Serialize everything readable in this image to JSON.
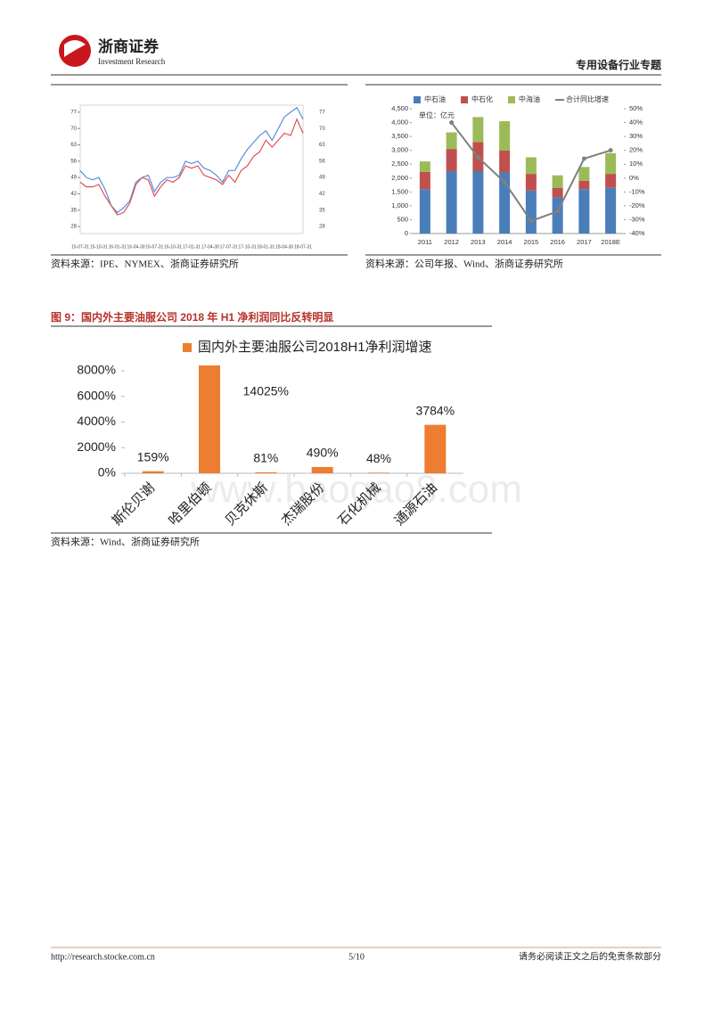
{
  "header": {
    "brand": "浙商证券",
    "brand_en": "Investment Research",
    "report": "专用设备行业专题"
  },
  "sources": [
    "资料来源：IPE、NYMEX、浙商证券研究所",
    "资料来源：公司年报、Wind、浙商证券研究所",
    "资料来源：Wind、浙商证券研究所"
  ],
  "figure_title": "图 9：国内外主要油服公司 2018 年 H1 净利润同比反转明显",
  "watermark": "www.baogao8.com",
  "footer": {
    "url": "http://research.stocke.com.cn",
    "page": "5/10",
    "note": "请务必阅读正文之后的免责条款部分"
  },
  "chart_data": [
    {
      "type": "line",
      "categories": [
        "15-07-31",
        null,
        null,
        "15-10-31",
        null,
        null,
        "16-01-31",
        null,
        null,
        "16-04-30",
        null,
        null,
        "16-07-31",
        null,
        null,
        "16-10-31",
        null,
        null,
        "17-01-31",
        null,
        null,
        "17-04-30",
        null,
        null,
        "17-07-31",
        null,
        null,
        "17-10-31",
        null,
        null,
        "18-01-31",
        null,
        null,
        "18-04-30",
        null,
        null,
        "18-07-31"
      ],
      "series": [
        {
          "color": "#5b8fd6",
          "values": [
            52,
            49,
            48,
            49,
            44,
            37,
            34,
            36,
            39,
            47,
            49,
            50,
            43,
            47,
            49,
            49,
            50,
            56,
            55,
            56,
            53,
            52,
            50,
            47,
            52,
            52,
            57,
            61,
            64,
            67,
            69,
            65,
            70,
            75,
            77,
            79,
            74
          ]
        },
        {
          "color": "#e0505a",
          "values": [
            47,
            45,
            45,
            46,
            41,
            37,
            33,
            34,
            38,
            46,
            49,
            48,
            41,
            45,
            48,
            47,
            49,
            54,
            53,
            54,
            50,
            49,
            48,
            46,
            50,
            47,
            52,
            54,
            58,
            60,
            65,
            62,
            65,
            68,
            67,
            74,
            68
          ]
        }
      ],
      "ylim": [
        25,
        80
      ],
      "yticks": [
        28,
        35,
        42,
        49,
        56,
        63,
        70,
        77
      ]
    },
    {
      "type": "bar",
      "stacked": true,
      "annotation": "单位：亿元",
      "categories": [
        "2011",
        "2012",
        "2013",
        "2014",
        "2015",
        "2016",
        "2017",
        "2018E"
      ],
      "series": [
        {
          "name": "中石油",
          "color": "#4a7ebb",
          "values": [
            1600,
            2250,
            2250,
            2200,
            1550,
            1300,
            1600,
            1650
          ]
        },
        {
          "name": "中石化",
          "color": "#c0504d",
          "values": [
            620,
            800,
            1050,
            800,
            600,
            350,
            300,
            500
          ]
        },
        {
          "name": "中海油",
          "color": "#9bbb59",
          "values": [
            380,
            600,
            900,
            1050,
            600,
            450,
            500,
            750
          ]
        },
        {
          "name": "合计同比增速",
          "color": "#808080",
          "axis": "y2",
          "values": [
            null,
            40,
            15,
            -3,
            -31,
            -24,
            14,
            20
          ]
        }
      ],
      "ylim": [
        0,
        4500
      ],
      "yticks": [
        0,
        500,
        {
          "value": 1000,
          "label": "1,000"
        },
        {
          "value": 1500,
          "label": "1,500"
        },
        {
          "value": 2000,
          "label": "2,000"
        },
        {
          "value": 2500,
          "label": "2,500"
        },
        {
          "value": 3000,
          "label": "3,000"
        },
        {
          "value": 3500,
          "label": "3,500"
        },
        {
          "value": 4000,
          "label": "4,000"
        },
        {
          "value": 4500,
          "label": "4,500"
        }
      ],
      "y2lim": [
        -40,
        50
      ],
      "y2ticks": [
        {
          "value": -40,
          "label": "-40%"
        },
        {
          "value": -30,
          "label": "-30%"
        },
        {
          "value": -20,
          "label": "-20%"
        },
        {
          "value": -10,
          "label": "-10%"
        },
        {
          "value": 0,
          "label": "0%"
        },
        {
          "value": 10,
          "label": "10%"
        },
        {
          "value": 20,
          "label": "20%"
        },
        {
          "value": 30,
          "label": "30%"
        },
        {
          "value": 40,
          "label": "40%"
        },
        {
          "value": 50,
          "label": "50%"
        }
      ]
    },
    {
      "type": "bar",
      "series": [
        {
          "name": "国内外主要油服公司2018H1净利润增速",
          "color": "#ed7d31",
          "values": [
            159,
            14025,
            81,
            490,
            48,
            3784
          ],
          "value_labels": [
            "159%",
            "14025%",
            "81%",
            "490%",
            "48%",
            "3784%"
          ]
        }
      ],
      "categories": [
        "斯伦贝谢",
        "哈里伯顿",
        "贝克休斯",
        "杰瑞股份",
        "石化机械",
        "通源石油"
      ],
      "ylim": [
        0,
        8000
      ],
      "yticks": [
        {
          "value": 0,
          "label": "0%"
        },
        {
          "value": 2000,
          "label": "2000%"
        },
        {
          "value": 4000,
          "label": "4000%"
        },
        {
          "value": 6000,
          "label": "6000%"
        },
        {
          "value": 8000,
          "label": "8000%"
        }
      ]
    }
  ]
}
